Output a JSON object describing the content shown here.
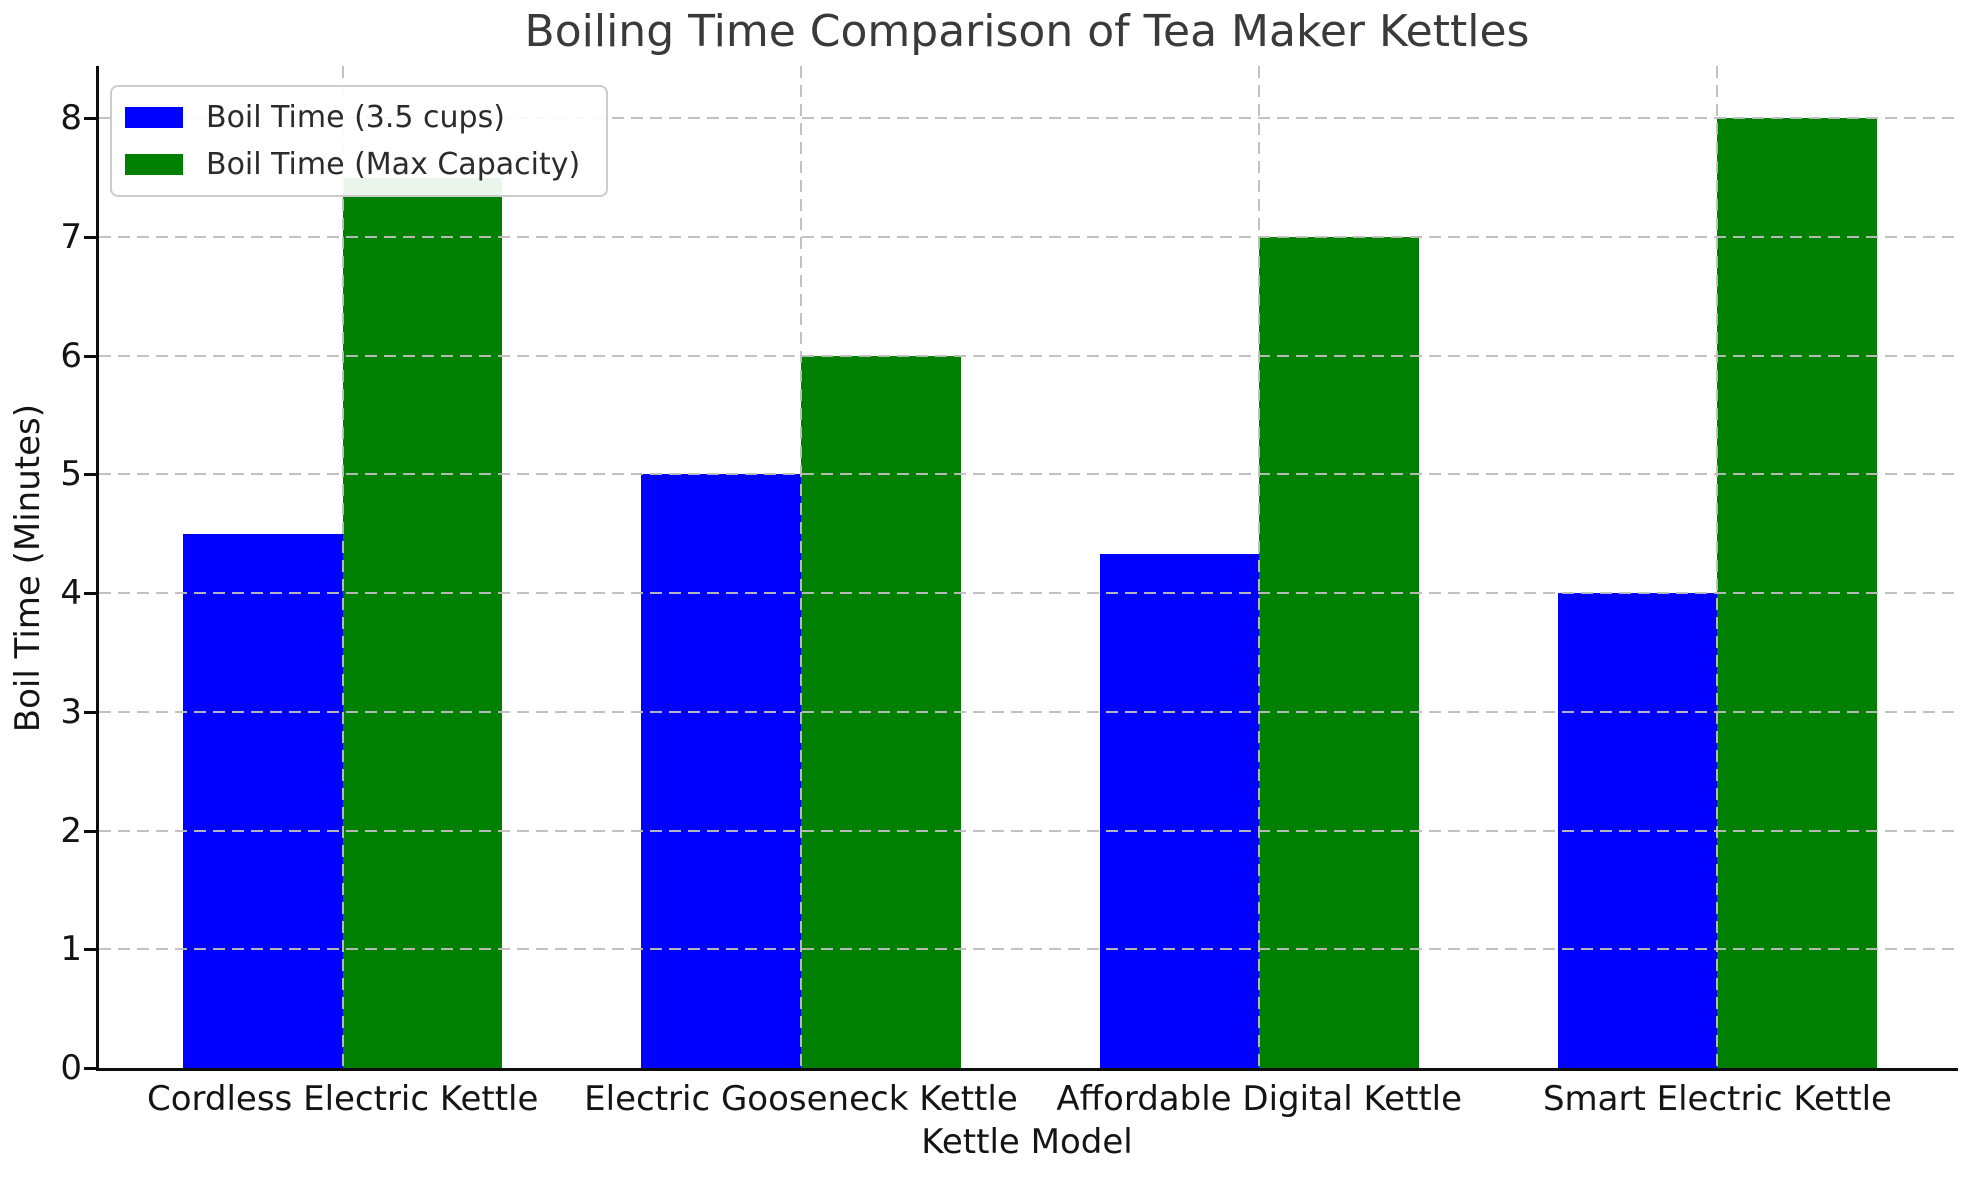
{
  "chart_data": {
    "type": "bar",
    "title": "Boiling Time Comparison of Tea Maker Kettles",
    "xlabel": "Kettle Model",
    "ylabel": "Boil Time (Minutes)",
    "categories": [
      "Cordless Electric Kettle",
      "Electric Gooseneck Kettle",
      "Affordable Digital Kettle",
      "Smart Electric Kettle"
    ],
    "series": [
      {
        "name": "Boil Time (3.5 cups)",
        "color": "#0000ff",
        "values": [
          4.5,
          5.0,
          4.33,
          4.0
        ]
      },
      {
        "name": "Boil Time (Max Capacity)",
        "color": "#008000",
        "values": [
          7.5,
          6.0,
          7.0,
          8.0
        ]
      }
    ],
    "yticks": [
      0,
      1,
      2,
      3,
      4,
      5,
      6,
      7,
      8
    ],
    "ylim": [
      0,
      8.44
    ],
    "grid": "dashed-both-axes",
    "grid_above_bars": true,
    "legend_position": "upper-left",
    "layout": {
      "first_center_frac": 0.1311,
      "center_step_frac": 0.2465,
      "bar_width_frac": 0.0859
    }
  },
  "colors": {
    "grid": "#bebebe",
    "spine": "#0d0d0d",
    "text": "#141414",
    "title": "#3a3a3a",
    "legend_border": "#cccccc"
  }
}
